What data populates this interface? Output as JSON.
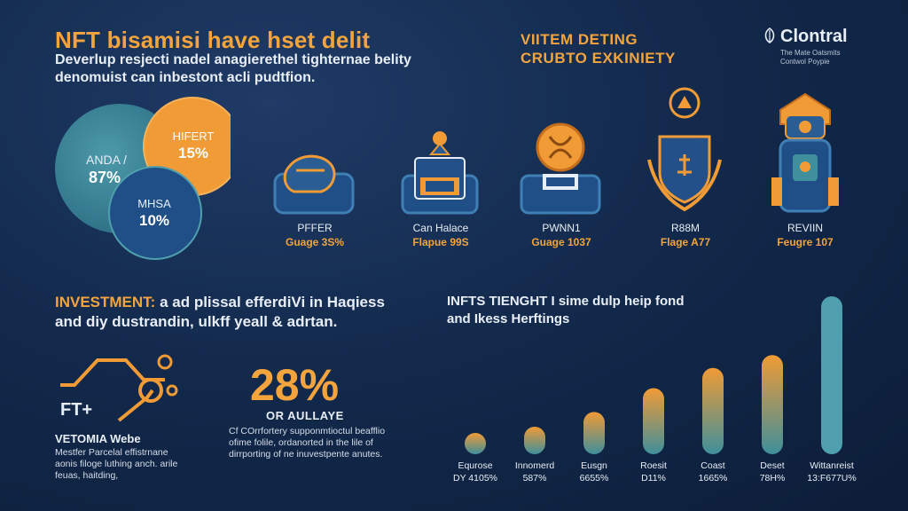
{
  "header": {
    "title": "NFT bisamisi have hset delit",
    "subtitle": "Deverlup resjecti nadel anagierethel tighternae belity denomuist can inbestont acli pudtfion.",
    "mid_title_line1": "VIITEM DETING",
    "mid_title_line2": "CRUBTO EXKINIETY",
    "brand_name": "Clontral",
    "brand_tag_line1": "The Mate Oatsmits",
    "brand_tag_line2": "Contwol Poypie"
  },
  "venn": {
    "left_label": "ANDA /",
    "left_value": "87%",
    "right_label": "HIFERT",
    "right_value": "15%",
    "center_label": "MHSA",
    "center_value": "10%",
    "colors": {
      "teal": "#3f8f9c",
      "orange": "#f09b35",
      "blue": "#1f4f86"
    }
  },
  "icon_row": [
    {
      "icon": "glove-icon",
      "label": "PFFER",
      "sub": "Guage 3S%"
    },
    {
      "icon": "vault-icon",
      "label": "Can Halace",
      "sub": "Flapue 99S"
    },
    {
      "icon": "coin-tray-icon",
      "label": "PWNN1",
      "sub": "Guage 1037"
    },
    {
      "icon": "shield-hands-icon",
      "label": "R88M",
      "sub": "Flage A77"
    },
    {
      "icon": "robot-vault-icon",
      "label": "REVIIN",
      "sub": "Feugre 107"
    }
  ],
  "investment": {
    "head_accent": "INVESTMENT:",
    "head_rest": "a ad plissal efferdiVi in Haqiess",
    "head_line2": "and diy dustrandin, ulkff yeall & adrtan.",
    "logo_text": "FT+",
    "desc_title": "VETOMIA Webe",
    "desc": "Mestfer Parcelal effistrnane aonis filoge luthing anch. arile feuas, haitding,"
  },
  "stat": {
    "value": "28%",
    "label": "OR AULLAYE",
    "desc": "Cf COrrfortery supponmtioctul beafflio ofime folile, ordanorted in the lile of dirrporting of ne inuvestpente anutes."
  },
  "chart_data": {
    "type": "bar",
    "title": "INFTS TIENGHT / I sime dulp heip fond and Ikess Herftings",
    "categories": [
      "Equrose",
      "Innomerd",
      "Eusgn",
      "Roesit",
      "Coast",
      "Deset",
      "Wittanreist"
    ],
    "value_labels": [
      "DY 4105%",
      "587%",
      "6655%",
      "D11%",
      "1665%",
      "78H%",
      "13:F677U%"
    ],
    "values": [
      1,
      1.5,
      2.3,
      3.6,
      4.7,
      5.4,
      8.6
    ],
    "colors": {
      "bar_top": "#f09b35",
      "bar_bottom": "#3f8f9c"
    }
  }
}
